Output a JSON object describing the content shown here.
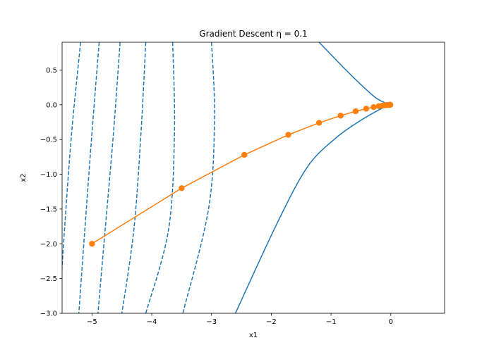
{
  "chart_data": {
    "type": "line",
    "title": "Gradient Descent η = 0.1",
    "xlabel": "x1",
    "ylabel": "x2",
    "xlim": [
      -5.5,
      0.9
    ],
    "ylim": [
      -3.0,
      0.9
    ],
    "grid": false,
    "x_ticks": [
      -5,
      -4,
      -3,
      -2,
      -1,
      0
    ],
    "x_tick_labels": [
      "−5",
      "−4",
      "−3",
      "−2",
      "−1",
      "0"
    ],
    "y_ticks": [
      -3.0,
      -2.5,
      -2.0,
      -1.5,
      -1.0,
      -0.5,
      0.0,
      0.5
    ],
    "y_tick_labels": [
      "−3.0",
      "−2.5",
      "−2.0",
      "−1.5",
      "−1.0",
      "−0.5",
      "0.0",
      "0.5"
    ],
    "series": [
      {
        "color": "#ff7f0e",
        "style": "line-with-markers",
        "x": [
          -5.0,
          -3.5,
          -2.45,
          -1.715,
          -1.2,
          -0.84,
          -0.588,
          -0.412,
          -0.288,
          -0.202,
          -0.141,
          -0.099,
          -0.069,
          -0.048,
          -0.034,
          -0.024,
          -0.017,
          -0.012,
          -0.008
        ],
        "y": [
          -2.0,
          -1.2,
          -0.72,
          -0.432,
          -0.259,
          -0.156,
          -0.093,
          -0.056,
          -0.034,
          -0.02,
          -0.012,
          -0.007,
          -0.004,
          -0.003,
          -0.002,
          -0.001,
          -0.001,
          0.0,
          0.0
        ]
      }
    ],
    "contours": [
      {
        "color": "#1f77b4",
        "style": "dashed",
        "x": [
          -5.19,
          -5.34,
          -5.46,
          -5.55
        ],
        "y": [
          0.9,
          -0.4,
          -1.8,
          -3.0
        ]
      },
      {
        "color": "#1f77b4",
        "style": "dashed",
        "x": [
          -4.88,
          -5.0,
          -5.12,
          -5.22
        ],
        "y": [
          0.9,
          -0.4,
          -1.8,
          -3.0
        ]
      },
      {
        "color": "#1f77b4",
        "style": "dashed",
        "x": [
          -4.53,
          -4.64,
          -4.78,
          -4.9
        ],
        "y": [
          0.9,
          -0.4,
          -1.8,
          -3.0
        ]
      },
      {
        "color": "#1f77b4",
        "style": "dashed",
        "x": [
          -4.1,
          -4.18,
          -4.3,
          -4.5
        ],
        "y": [
          0.9,
          -0.4,
          -1.8,
          -3.0
        ]
      },
      {
        "color": "#1f77b4",
        "style": "dashed",
        "x": [
          -3.65,
          -3.62,
          -3.72,
          -4.1
        ],
        "y": [
          0.9,
          -0.4,
          -1.8,
          -3.0
        ]
      },
      {
        "color": "#1f77b4",
        "style": "dashed",
        "x": [
          -3.0,
          -2.95,
          -3.05,
          -3.48
        ],
        "y": [
          0.9,
          -0.2,
          -1.5,
          -3.0
        ]
      },
      {
        "color": "#1f77b4",
        "style": "solid",
        "x": [
          -1.2,
          -0.75,
          -0.45,
          -0.25,
          -0.1,
          0.0,
          -0.15,
          -0.55,
          -0.95,
          -1.4,
          -1.9,
          -2.6
        ],
        "y": [
          0.9,
          0.5,
          0.25,
          0.1,
          0.03,
          0.0,
          -0.05,
          -0.25,
          -0.5,
          -0.9,
          -1.7,
          -3.0
        ]
      }
    ]
  }
}
